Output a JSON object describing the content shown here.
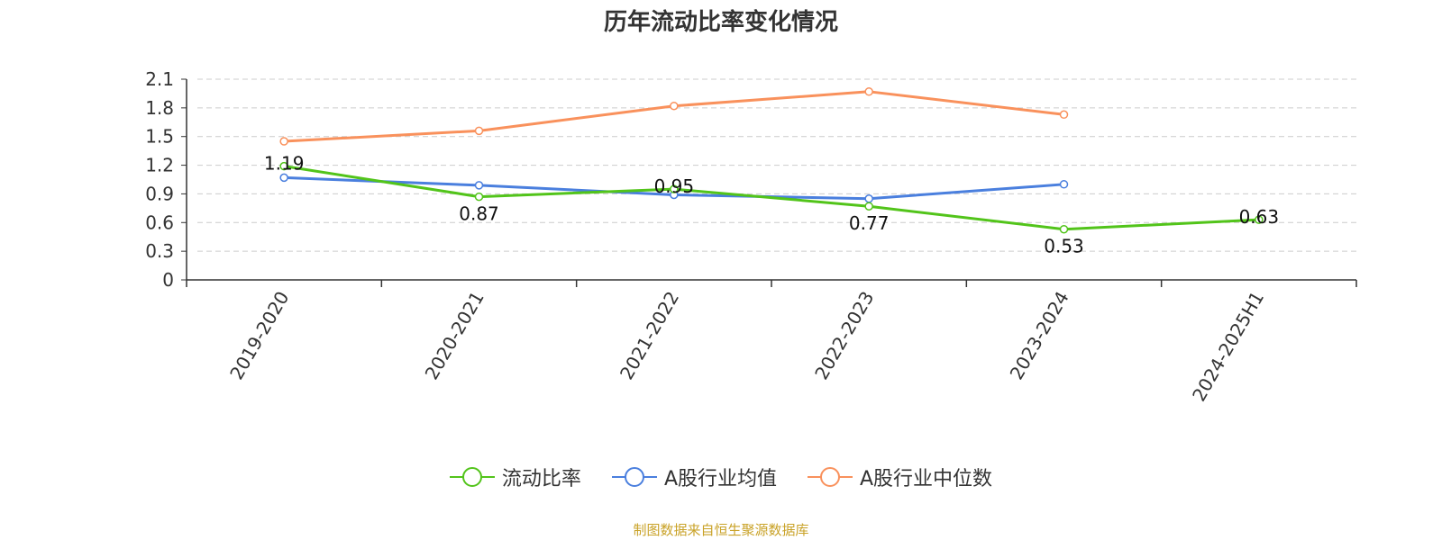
{
  "chart_data": {
    "type": "line",
    "title": "历年流动比率变化情况",
    "categories": [
      "2019-2020",
      "2020-2021",
      "2021-2022",
      "2022-2023",
      "2023-2024",
      "2024-2025H1"
    ],
    "ylim": [
      0,
      2.1
    ],
    "yticks": [
      "0",
      "0.3",
      "0.6",
      "0.9",
      "1.2",
      "1.5",
      "1.8",
      "2.1"
    ],
    "grid": true,
    "legend_position": "bottom",
    "series": [
      {
        "name": "流动比率",
        "color": "#52c41a",
        "values": [
          1.19,
          0.87,
          0.95,
          0.77,
          0.53,
          0.63
        ],
        "labels": [
          "1.19",
          "0.87",
          "0.95",
          "0.77",
          "0.53",
          "0.63"
        ]
      },
      {
        "name": "A股行业均值",
        "color": "#4a7fde",
        "values": [
          1.07,
          0.99,
          0.89,
          0.85,
          1.0,
          null
        ]
      },
      {
        "name": "A股行业中位数",
        "color": "#f9915c",
        "values": [
          1.45,
          1.56,
          1.82,
          1.97,
          1.73,
          null
        ]
      }
    ]
  },
  "source_note": "制图数据来自恒生聚源数据库"
}
